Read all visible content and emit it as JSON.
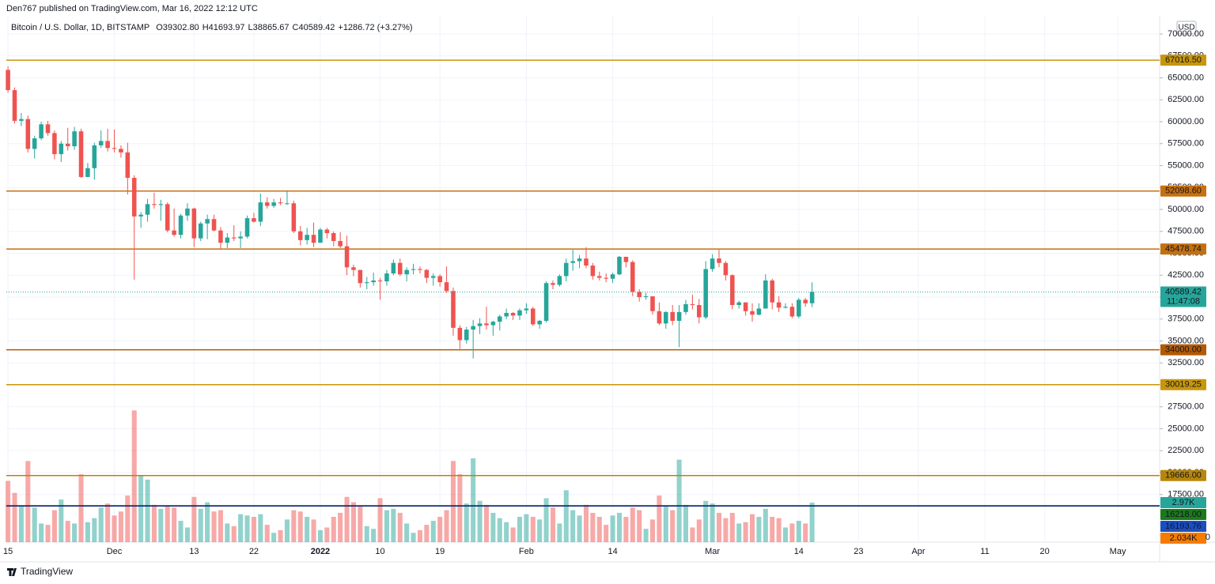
{
  "header": {
    "published": "Den767 published on TradingView.com, Mar 16, 2022 12:12 UTC",
    "symbol": "Bitcoin / U.S. Dollar, 1D, BITSTAMP",
    "ohlc": [
      {
        "key": "O",
        "value": "39302.80"
      },
      {
        "key": "H",
        "value": "41693.97"
      },
      {
        "key": "L",
        "value": "38865.67"
      },
      {
        "key": "C",
        "value": "40589.42"
      }
    ],
    "change": "+1286.72 (+3.27%)",
    "currency": "USD"
  },
  "footer": {
    "brand": "TradingView"
  },
  "chart_data": {
    "type": "candlestick",
    "up_color": "#26a69a",
    "down_color": "#ef5350",
    "grid": true,
    "xlim": [
      -0.25,
      173.3
    ],
    "xticks": [
      {
        "value": 0,
        "label": "15"
      },
      {
        "value": 16,
        "label": "Dec"
      },
      {
        "value": 28,
        "label": "13"
      },
      {
        "value": 37,
        "label": "22"
      },
      {
        "value": 47,
        "label": "2022"
      },
      {
        "value": 56,
        "label": "10"
      },
      {
        "value": 65,
        "label": "19"
      },
      {
        "value": 78,
        "label": "Feb"
      },
      {
        "value": 91,
        "label": "14"
      },
      {
        "value": 106,
        "label": "Mar"
      },
      {
        "value": 119,
        "label": "14"
      },
      {
        "value": 128,
        "label": "23"
      },
      {
        "value": 137,
        "label": "Apr"
      },
      {
        "value": 147,
        "label": "11"
      },
      {
        "value": 156,
        "label": "20"
      },
      {
        "value": 167,
        "label": "May"
      }
    ],
    "ylim": [
      12072,
      72072
    ],
    "yticks": [
      {
        "value": 70000,
        "label": "70000.00"
      },
      {
        "value": 67500,
        "label": "67500.00"
      },
      {
        "value": 65000,
        "label": "65000.00"
      },
      {
        "value": 62500,
        "label": "62500.00"
      },
      {
        "value": 60000,
        "label": "60000.00"
      },
      {
        "value": 57500,
        "label": "57500.00"
      },
      {
        "value": 55000,
        "label": "55000.00"
      },
      {
        "value": 52500,
        "label": "52500.00"
      },
      {
        "value": 50000,
        "label": "50000.00"
      },
      {
        "value": 47500,
        "label": "47500.00"
      },
      {
        "value": 45000,
        "label": "45000.00"
      },
      {
        "value": 42500,
        "label": "42500.00"
      },
      {
        "value": 40000,
        "label": "40000.00"
      },
      {
        "value": 37500,
        "label": "37500.00"
      },
      {
        "value": 35000,
        "label": "35000.00"
      },
      {
        "value": 32500,
        "label": "32500.00"
      },
      {
        "value": 30000,
        "label": "30000.00"
      },
      {
        "value": 27500,
        "label": "27500.00"
      },
      {
        "value": 25000,
        "label": "25000.00"
      },
      {
        "value": 22500,
        "label": "22500.00"
      },
      {
        "value": 20000,
        "label": "20000.00"
      },
      {
        "value": 17500,
        "label": "17500.00"
      }
    ],
    "y2lim": [
      0,
      39.56
    ],
    "y2ticks": [
      0
    ],
    "open": [
      65900,
      63600,
      60100,
      60300,
      56900,
      58100,
      59700,
      58700,
      56300,
      57500,
      57200,
      58900,
      53700,
      54700,
      57300,
      57800,
      57000,
      56900,
      56500,
      53600,
      49200,
      49400,
      50600,
      50500,
      50600,
      47600,
      47100,
      49300,
      50100,
      46700,
      48400,
      48900,
      47600,
      46200,
      46800,
      46700,
      46900,
      49000,
      48600,
      50800,
      50400,
      50800,
      50700,
      50700,
      47500,
      46500,
      47100,
      46200,
      47700,
      47300,
      46400,
      45800,
      43400,
      43100,
      41600,
      41700,
      41900,
      41800,
      42700,
      43900,
      42600,
      43100,
      43200,
      43100,
      42200,
      42400,
      41700,
      40700,
      36500,
      35100,
      36300,
      36700,
      37000,
      36800,
      37200,
      37800,
      38200,
      37900,
      38500,
      38700,
      36900,
      37300,
      41600,
      41400,
      42400,
      43900,
      44100,
      44400,
      43600,
      42400,
      42200,
      42100,
      42600,
      44600,
      44000,
      40600,
      40000,
      40100,
      38400,
      37000,
      38300,
      37300,
      38300,
      39200,
      39100,
      37700,
      43200,
      44400,
      43900,
      42500,
      39100,
      39400,
      38400,
      38000,
      38700,
      41900,
      39400,
      38800,
      38900,
      37800,
      39700,
      39302.8
    ],
    "high": [
      66300,
      63900,
      61000,
      60700,
      58400,
      60000,
      60100,
      59000,
      57800,
      59300,
      59400,
      59200,
      55300,
      57600,
      59000,
      59200,
      59100,
      57300,
      57600,
      53900,
      49700,
      51200,
      51900,
      51100,
      50800,
      50100,
      49500,
      50700,
      50200,
      48600,
      49400,
      49400,
      48000,
      47300,
      48200,
      47500,
      49300,
      49600,
      51800,
      51400,
      51200,
      51300,
      52100,
      51000,
      48100,
      47900,
      48500,
      47900,
      47900,
      47500,
      47400,
      47000,
      43700,
      43100,
      42300,
      42800,
      42200,
      43100,
      44300,
      44400,
      43400,
      43800,
      43500,
      43200,
      42700,
      42600,
      43500,
      41100,
      36800,
      36600,
      37400,
      37600,
      38900,
      37300,
      38000,
      38700,
      38300,
      38700,
      39300,
      38900,
      37400,
      41800,
      41900,
      42600,
      44400,
      45400,
      44800,
      45700,
      43900,
      42900,
      42700,
      42800,
      44700,
      44600,
      44200,
      40900,
      40500,
      40100,
      39400,
      38400,
      39100,
      39100,
      39700,
      40300,
      39800,
      44100,
      44900,
      45400,
      44100,
      42600,
      39600,
      39400,
      39300,
      39300,
      42600,
      42100,
      40100,
      39300,
      39300,
      39900,
      39900,
      41693.97
    ],
    "low": [
      63300,
      59800,
      59500,
      56500,
      55800,
      57900,
      58400,
      55700,
      55400,
      56700,
      56800,
      53600,
      53700,
      53400,
      57000,
      56600,
      56500,
      55900,
      51700,
      42000,
      47900,
      48600,
      50100,
      48700,
      47400,
      46900,
      46700,
      48700,
      45700,
      46400,
      46600,
      47500,
      45500,
      45600,
      46400,
      45600,
      46700,
      48500,
      48100,
      50100,
      50200,
      50500,
      50500,
      47300,
      45900,
      46000,
      45700,
      46200,
      46700,
      45800,
      45600,
      42500,
      42400,
      41100,
      40900,
      41300,
      39700,
      41300,
      42500,
      42400,
      41800,
      42600,
      42700,
      41600,
      41300,
      41200,
      40500,
      35600,
      34100,
      34700,
      33000,
      35800,
      36300,
      35600,
      36200,
      37500,
      37400,
      37400,
      38100,
      36700,
      36400,
      37100,
      40900,
      41200,
      41800,
      43000,
      43300,
      43300,
      42000,
      41900,
      41700,
      41600,
      42500,
      43400,
      40100,
      39500,
      39700,
      38000,
      36800,
      36400,
      36800,
      34300,
      38000,
      38600,
      37000,
      37500,
      42900,
      43400,
      41900,
      38600,
      38700,
      37900,
      37200,
      37900,
      38700,
      38600,
      38300,
      38700,
      37600,
      37600,
      38900,
      38865.67
    ],
    "close": [
      63600,
      60100,
      60300,
      56900,
      58100,
      59700,
      58700,
      56300,
      57500,
      57200,
      58900,
      53700,
      54700,
      57300,
      57800,
      57000,
      56900,
      56500,
      53600,
      49200,
      49400,
      50600,
      50500,
      50600,
      47600,
      47100,
      49300,
      50100,
      46700,
      48400,
      48900,
      47600,
      46200,
      46800,
      46700,
      46900,
      49000,
      48600,
      50800,
      50400,
      50800,
      50700,
      50700,
      47500,
      46500,
      47100,
      46200,
      47700,
      47300,
      46400,
      45800,
      43400,
      43100,
      41600,
      41700,
      41900,
      41800,
      42700,
      43900,
      42600,
      43100,
      43200,
      43100,
      42200,
      42400,
      41700,
      40700,
      36500,
      35100,
      36300,
      36700,
      37000,
      36800,
      37200,
      37800,
      38200,
      37900,
      38500,
      38700,
      36900,
      37300,
      41600,
      41400,
      42400,
      43900,
      44100,
      44400,
      43600,
      42400,
      42200,
      42100,
      42600,
      44600,
      44000,
      40600,
      40000,
      40100,
      38400,
      37000,
      38300,
      37300,
      38300,
      39200,
      39100,
      37700,
      43200,
      44400,
      43900,
      42500,
      39100,
      39400,
      38400,
      38000,
      38700,
      41900,
      39400,
      38800,
      38900,
      37800,
      39700,
      39300,
      40589.42
    ],
    "volume": [
      4.6,
      3.7,
      2.7,
      6.1,
      2.6,
      1.4,
      1.3,
      2.4,
      3.2,
      1.6,
      1.4,
      5.1,
      1.5,
      1.8,
      2.6,
      2.9,
      2.0,
      2.3,
      3.5,
      9.9,
      5.0,
      4.7,
      2.8,
      2.5,
      2.7,
      2.6,
      1.6,
      1.1,
      3.4,
      2.5,
      3.0,
      2.3,
      2.4,
      1.4,
      1.2,
      2.1,
      2.0,
      1.9,
      2.1,
      1.3,
      0.7,
      0.9,
      1.7,
      2.4,
      2.3,
      1.9,
      1.7,
      0.9,
      1.1,
      1.9,
      2.2,
      3.4,
      3.0,
      2.7,
      1.2,
      1.0,
      3.3,
      2.4,
      2.5,
      2.2,
      1.4,
      0.7,
      0.9,
      1.3,
      1.6,
      1.9,
      2.4,
      6.1,
      5.1,
      2.9,
      6.3,
      3.1,
      2.8,
      2.2,
      1.8,
      1.5,
      1.1,
      1.9,
      2.1,
      1.9,
      1.7,
      3.3,
      2.6,
      1.4,
      3.9,
      2.4,
      2.0,
      2.8,
      2.2,
      1.9,
      1.3,
      2.0,
      2.2,
      1.9,
      2.6,
      2.4,
      1.0,
      1.7,
      3.5,
      2.7,
      2.4,
      6.2,
      2.8,
      1.1,
      1.7,
      3.1,
      2.9,
      2.2,
      1.8,
      2.2,
      1.4,
      1.5,
      2.1,
      1.9,
      2.5,
      1.9,
      1.8,
      1.1,
      1.4,
      1.6,
      1.4,
      2.97
    ],
    "volume_last_label": "2.97K",
    "volume_ma": {
      "value": 2.034,
      "label": "2.034K",
      "color": "#f57c00"
    },
    "last_price": {
      "value": 40589.42,
      "label": "40589.42",
      "countdown": "11:47:08"
    },
    "levels": [
      {
        "value": 67016.5,
        "label": "67016.50",
        "color": "#c8960a",
        "label_color": "#c8960a"
      },
      {
        "value": 52098.6,
        "label": "52098.60",
        "color": "#c8700f",
        "label_color": "#c8700f"
      },
      {
        "value": 45478.74,
        "label": "45478.74",
        "color": "#c4700f",
        "label_color": "#c4700f"
      },
      {
        "value": 34000,
        "label": "34000.00",
        "color": "#b35a05",
        "label_color": "#b35a05"
      },
      {
        "value": 30019.25,
        "label": "30019.25",
        "color": "#c8960a",
        "label_color": "#c8960a"
      },
      {
        "value": 19666,
        "label": "19666.00",
        "color": "#b8860b",
        "label_color": "#b8860b"
      },
      {
        "value": 16218,
        "label": "16218.00",
        "color": "#1e5bc6",
        "label_color": "#1b7a1b"
      },
      {
        "value": 16193.76,
        "label": "16193.76",
        "color": "#0d2a6b",
        "label_color": "#1a4fc2"
      }
    ]
  }
}
